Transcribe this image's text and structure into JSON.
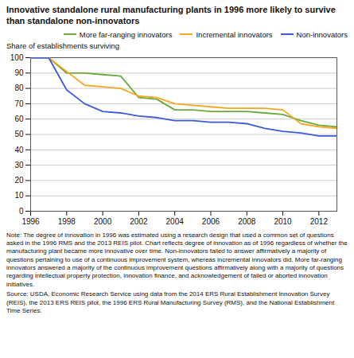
{
  "chart_data": {
    "type": "line",
    "title": "Innovative standalone rural manufacturing plants in 1996 more likely to survive than standalone non-innovators",
    "ylabel": "Share of establishments surviving",
    "x": [
      1996,
      1997,
      1998,
      1999,
      2000,
      2001,
      2002,
      2003,
      2004,
      2005,
      2006,
      2007,
      2008,
      2009,
      2010,
      2011,
      2012,
      2013
    ],
    "series": [
      {
        "name": "More far-ranging innovators",
        "color": "#6aaa3a",
        "values": [
          100,
          100,
          90,
          90,
          89,
          88,
          74,
          73,
          66,
          66,
          65,
          65,
          65,
          64,
          63,
          59,
          56,
          55
        ]
      },
      {
        "name": "Incremental innovators",
        "color": "#f5a623",
        "values": [
          100,
          100,
          91,
          82,
          81,
          80,
          75,
          74,
          70,
          69,
          68,
          67,
          67,
          67,
          66,
          57,
          55,
          54
        ]
      },
      {
        "name": "Non-innovators",
        "color": "#3b5bdb",
        "values": [
          100,
          100,
          79,
          70,
          65,
          64,
          62,
          61,
          59,
          59,
          58,
          58,
          57,
          54,
          52,
          51,
          49,
          49
        ]
      }
    ],
    "xlim": [
      1996,
      2013
    ],
    "ylim": [
      0,
      100
    ],
    "xticks": [
      1996,
      1998,
      2000,
      2002,
      2004,
      2006,
      2008,
      2010,
      2012
    ],
    "yticks": [
      0,
      10,
      20,
      30,
      40,
      50,
      60,
      70,
      80,
      90,
      100
    ],
    "grid": true,
    "legend": "upper right",
    "note": "Note: The degree of innovation in 1996 was estimated using a research design that used a common set of questions asked in the 1996 RMS and the 2013 REIS pilot. Chart reflects degree of innovation as of 1996 regardless of whether the manufacturing plant became more innovative over time. Non-innovators failed to answer affirmatively a majority of questions pertaining to use of a continuous improvement system, whereas incremental innovators did. More far-ranging innovators answered a majority of the continuous improvement questions affirmatively along with a majority of questions regarding intellectual property protection, innovation finance, and acknowledgement of failed or aborted innovation initiatives.",
    "source": "Source: USDA, Economic Research Service using data from the 2014 ERS Rural Establishment Innovation Survey (REIS), the 2013 ERS REIS pilot, the 1996 ERS Rural Manufacturing Survey (RMS), and the National Establishment Time Series."
  }
}
